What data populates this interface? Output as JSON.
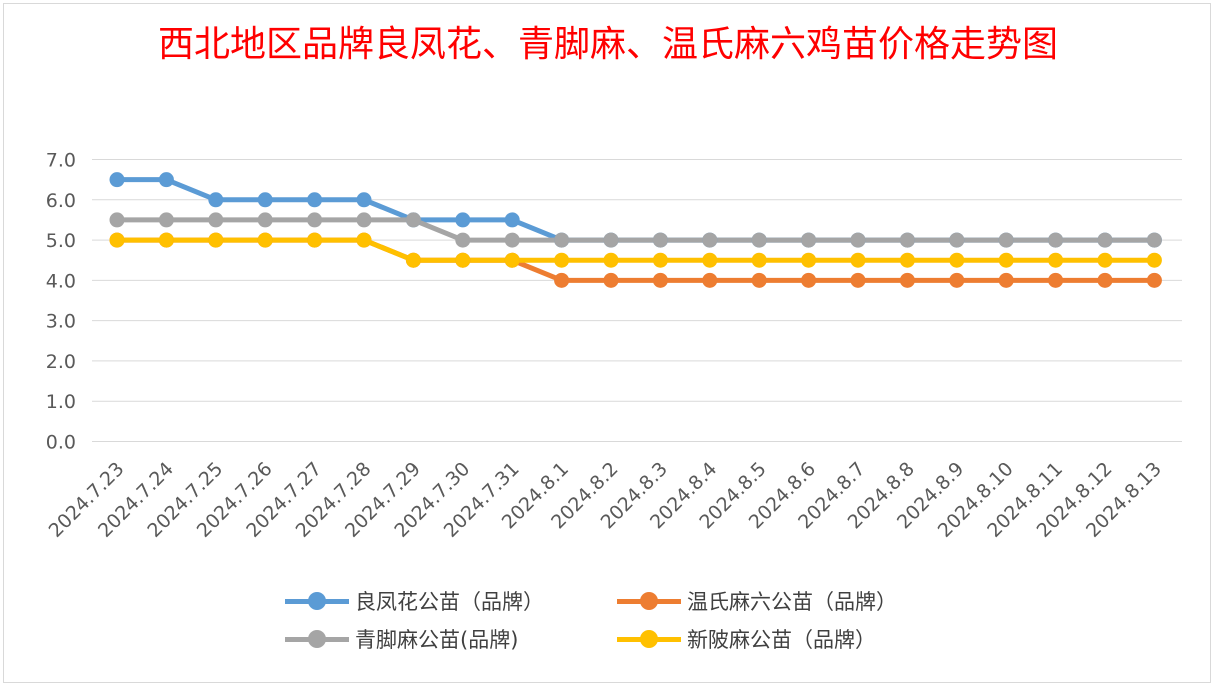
{
  "chart_data": {
    "type": "line",
    "title": "西北地区品牌良凤花、青脚麻、温氏麻六鸡苗价格走势图",
    "categories": [
      "2024.7.23",
      "2024.7.24",
      "2024.7.25",
      "2024.7.26",
      "2024.7.27",
      "2024.7.28",
      "2024.7.29",
      "2024.7.30",
      "2024.7.31",
      "2024.8.1",
      "2024.8.2",
      "2024.8.3",
      "2024.8.4",
      "2024.8.5",
      "2024.8.6",
      "2024.8.7",
      "2024.8.8",
      "2024.8.9",
      "2024.8.10",
      "2024.8.11",
      "2024.8.12",
      "2024.8.13"
    ],
    "y_ticks": [
      "0.0",
      "1.0",
      "2.0",
      "3.0",
      "4.0",
      "5.0",
      "6.0",
      "7.0"
    ],
    "ylim": [
      0,
      7
    ],
    "grid": true,
    "legend_position": "bottom",
    "series": [
      {
        "name": "温氏麻六公苗（品牌）",
        "color": "#ed7d31",
        "values": [
          5.0,
          5.0,
          5.0,
          5.0,
          5.0,
          5.0,
          4.5,
          4.5,
          4.5,
          4.0,
          4.0,
          4.0,
          4.0,
          4.0,
          4.0,
          4.0,
          4.0,
          4.0,
          4.0,
          4.0,
          4.0,
          4.0
        ]
      },
      {
        "name": "良凤花公苗（品牌）",
        "color": "#5b9bd5",
        "values": [
          6.5,
          6.5,
          6.0,
          6.0,
          6.0,
          6.0,
          5.5,
          5.5,
          5.5,
          5.0,
          5.0,
          5.0,
          5.0,
          5.0,
          5.0,
          5.0,
          5.0,
          5.0,
          5.0,
          5.0,
          5.0,
          5.0
        ]
      },
      {
        "name": "青脚麻公苗(品牌)",
        "color": "#a5a5a5",
        "values": [
          5.5,
          5.5,
          5.5,
          5.5,
          5.5,
          5.5,
          5.5,
          5.0,
          5.0,
          5.0,
          5.0,
          5.0,
          5.0,
          5.0,
          5.0,
          5.0,
          5.0,
          5.0,
          5.0,
          5.0,
          5.0,
          5.0
        ]
      },
      {
        "name": "新陂麻公苗（品牌）",
        "color": "#ffc000",
        "values": [
          5.0,
          5.0,
          5.0,
          5.0,
          5.0,
          5.0,
          4.5,
          4.5,
          4.5,
          4.5,
          4.5,
          4.5,
          4.5,
          4.5,
          4.5,
          4.5,
          4.5,
          4.5,
          4.5,
          4.5,
          4.5,
          4.5
        ]
      }
    ],
    "legend_order": [
      1,
      0,
      2,
      3
    ]
  }
}
